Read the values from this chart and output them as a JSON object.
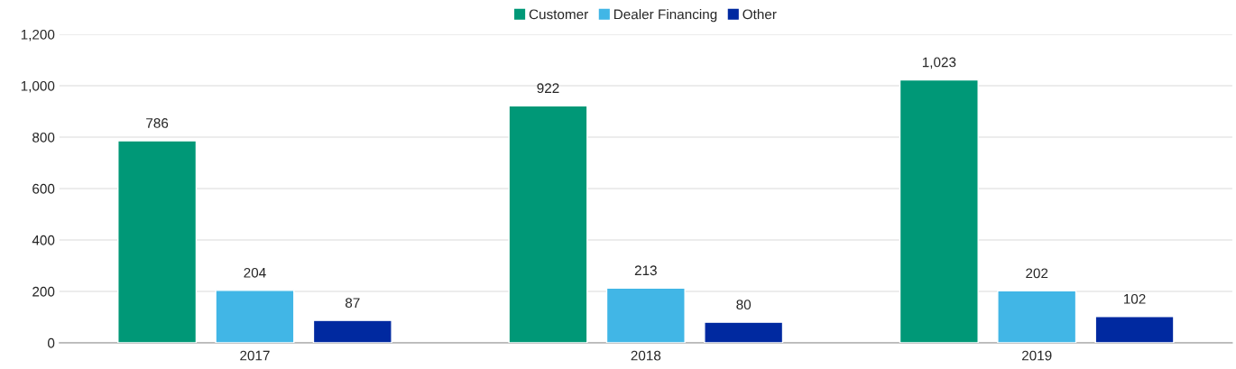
{
  "chart_data": {
    "type": "bar",
    "categories": [
      "2017",
      "2018",
      "2019"
    ],
    "series": [
      {
        "name": "Customer",
        "color": "#009877",
        "values": [
          786,
          922,
          1023
        ],
        "value_labels": [
          "786",
          "922",
          "1,023"
        ]
      },
      {
        "name": "Dealer Financing",
        "color": "#41b6e6",
        "values": [
          204,
          213,
          202
        ],
        "value_labels": [
          "204",
          "213",
          "202"
        ]
      },
      {
        "name": "Other",
        "color": "#0029a0",
        "values": [
          87,
          80,
          102
        ],
        "value_labels": [
          "87",
          "80",
          "102"
        ]
      }
    ],
    "ylim": [
      0,
      1200
    ],
    "yticks": [
      0,
      200,
      400,
      600,
      800,
      {
        "value": 1000,
        "label": "1,000"
      },
      {
        "value": 1200,
        "label": "1,200"
      }
    ],
    "grid": "y",
    "legend": "top"
  }
}
